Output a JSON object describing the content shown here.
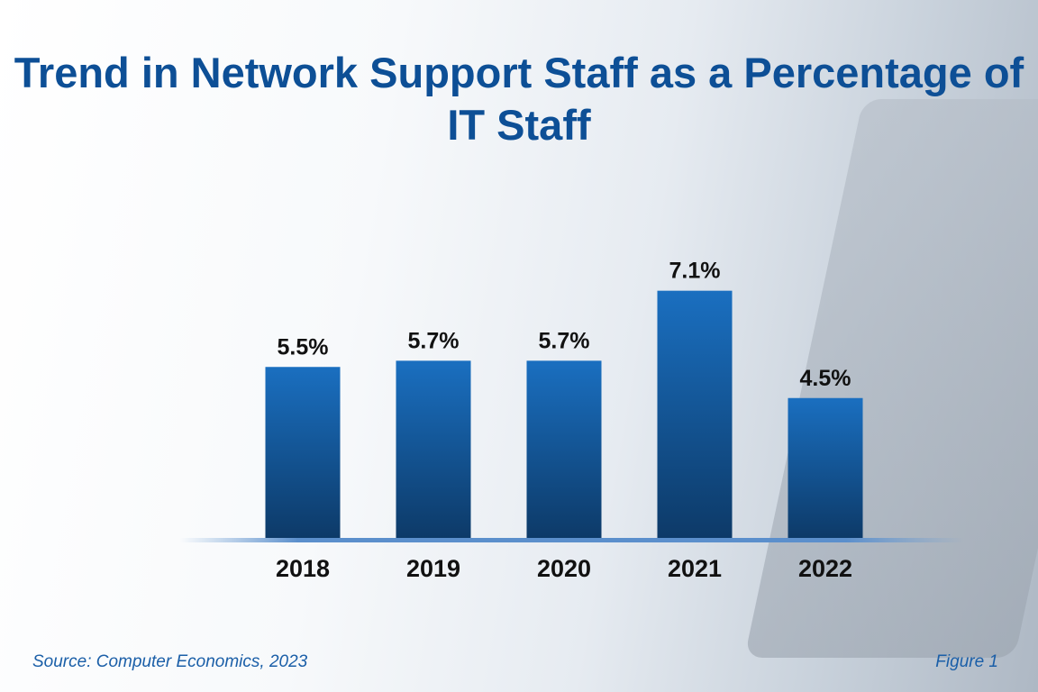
{
  "chart_data": {
    "type": "bar",
    "title": "Trend in Network Support Staff as a Percentage of IT Staff",
    "categories": [
      "2018",
      "2019",
      "2020",
      "2021",
      "2022"
    ],
    "values": [
      5.5,
      5.7,
      5.7,
      7.1,
      4.5
    ],
    "data_labels": [
      "5.5%",
      "5.7%",
      "5.7%",
      "7.1%",
      "4.5%"
    ],
    "xlabel": "",
    "ylabel": "",
    "grid": false,
    "bar_color_top": "#1a6fc0",
    "bar_color_bottom": "#0d3a68"
  },
  "footer": {
    "source": "Source: Computer Economics, 2023",
    "figure": "Figure 1"
  },
  "colors": {
    "title": "#0d4f96",
    "footer": "#1b5fa8"
  }
}
